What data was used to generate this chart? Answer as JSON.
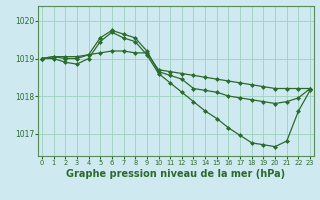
{
  "background_color": "#cee9f0",
  "grid_color": "#9ecfbe",
  "line_color": "#2d6a2d",
  "marker_color": "#2d6a2d",
  "xlabel": "Graphe pression niveau de la mer (hPa)",
  "xlabel_fontsize": 7,
  "yticks": [
    1017,
    1018,
    1019,
    1020
  ],
  "xticks": [
    0,
    1,
    2,
    3,
    4,
    5,
    6,
    7,
    8,
    9,
    10,
    11,
    12,
    13,
    14,
    15,
    16,
    17,
    18,
    19,
    20,
    21,
    22,
    23
  ],
  "ylim": [
    1016.4,
    1020.4
  ],
  "xlim": [
    -0.3,
    23.3
  ],
  "series": [
    [
      1019.0,
      1019.05,
      1019.05,
      1019.05,
      1019.1,
      1019.15,
      1019.2,
      1019.2,
      1019.15,
      1019.15,
      1018.7,
      1018.65,
      1018.6,
      1018.55,
      1018.5,
      1018.45,
      1018.4,
      1018.35,
      1018.3,
      1018.25,
      1018.2,
      1018.2,
      1018.2,
      1018.2
    ],
    [
      1019.0,
      1019.05,
      1019.0,
      1019.0,
      1019.1,
      1019.55,
      1019.75,
      1019.65,
      1019.55,
      1019.2,
      1018.65,
      1018.55,
      1018.45,
      1018.2,
      1018.15,
      1018.1,
      1018.0,
      1017.95,
      1017.9,
      1017.85,
      1017.8,
      1017.85,
      1017.95,
      1018.2
    ],
    [
      1019.0,
      1019.0,
      1018.9,
      1018.85,
      1019.0,
      1019.45,
      1019.7,
      1019.55,
      1019.45,
      1019.1,
      1018.6,
      1018.35,
      1018.1,
      1017.85,
      1017.6,
      1017.4,
      1017.15,
      1016.95,
      1016.75,
      1016.7,
      1016.65,
      1016.8,
      1017.6,
      1018.15
    ]
  ]
}
